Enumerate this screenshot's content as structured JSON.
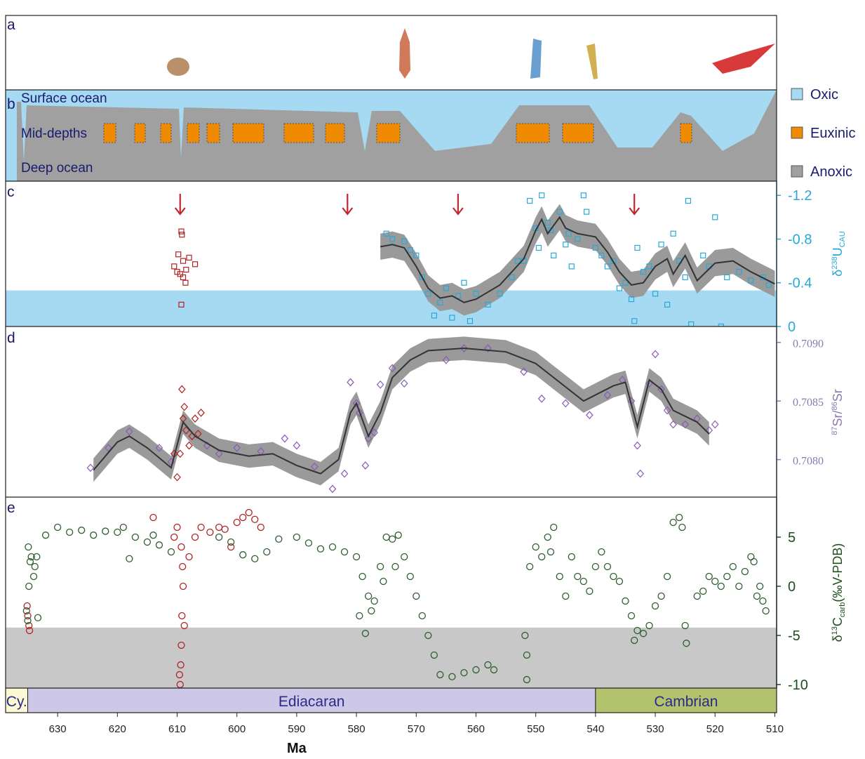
{
  "panel_a": {
    "label": "a"
  },
  "panel_b": {
    "label": "b",
    "zones": [
      "Surface ocean",
      "Mid-depths",
      "Deep ocean"
    ],
    "legend": [
      {
        "name": "Oxic",
        "color": "#a6d9f2"
      },
      {
        "name": "Euxinic",
        "color": "#f08a00"
      },
      {
        "name": "Anoxic",
        "color": "#a0a0a0"
      }
    ]
  },
  "chart_data": [
    {
      "type": "scatter",
      "panel_label": "c",
      "marker": "square",
      "ylim": [
        0,
        -1.33
      ],
      "yticks": [
        -1.2,
        -0.8,
        -0.4,
        0
      ],
      "axis_color": "#29a8d8",
      "y_label_parts": [
        "δ",
        "238",
        "U",
        "CAU"
      ],
      "shade": {
        "range": [
          0,
          -0.33
        ],
        "color": "#a6d9f2"
      },
      "arrows_x": [
        609.5,
        581.5,
        563,
        533.5
      ],
      "arrow_color": "#c0282d",
      "series": [
        {
          "color": "#b22222",
          "x": [
            609.3,
            609.2,
            609.8,
            610.5,
            609.0,
            608.0,
            607.0,
            608.5,
            609.5,
            610.0,
            609.0,
            608.6,
            609.3
          ],
          "values": [
            -0.87,
            -0.84,
            -0.66,
            -0.55,
            -0.6,
            -0.63,
            -0.57,
            -0.52,
            -0.48,
            -0.5,
            -0.45,
            -0.4,
            -0.2
          ]
        },
        {
          "color": "#29a8d8",
          "x": [
            575,
            574,
            572,
            571,
            570,
            569,
            568,
            567,
            566,
            565,
            564,
            563,
            562,
            561,
            560,
            558,
            556,
            554,
            552,
            551,
            550,
            549.5,
            549,
            548,
            547,
            546,
            545,
            544,
            543,
            542,
            541.5,
            540,
            539,
            538,
            537,
            536,
            535,
            534,
            533.5,
            533,
            532,
            531,
            530,
            529,
            528,
            527,
            526,
            525,
            524.5,
            524,
            522,
            521,
            520,
            519,
            518,
            516,
            514,
            512,
            511,
            553,
            547.5,
            544.5
          ],
          "values": [
            -0.85,
            -0.8,
            -0.78,
            -0.7,
            -0.65,
            -0.45,
            -0.3,
            -0.1,
            -0.22,
            -0.35,
            -0.08,
            -0.28,
            -0.4,
            -0.05,
            -0.3,
            -0.2,
            -0.3,
            -0.45,
            -0.6,
            -1.15,
            -0.9,
            -0.72,
            -1.2,
            -0.95,
            -0.65,
            -1.05,
            -0.75,
            -0.55,
            -0.8,
            -1.2,
            -1.05,
            -0.72,
            -0.65,
            -0.55,
            -0.6,
            -0.35,
            -0.4,
            -0.25,
            -0.05,
            -0.72,
            -0.5,
            -0.55,
            -0.3,
            -0.75,
            -0.2,
            -0.85,
            -0.6,
            -0.45,
            -1.15,
            -0.02,
            -0.65,
            -0.55,
            -1.0,
            0,
            -0.45,
            -0.5,
            -0.42,
            -0.45,
            -0.38,
            -0.6,
            -0.88,
            -0.85
          ]
        }
      ],
      "trend": {
        "color": "#333333",
        "band_color": "#9a9a9a",
        "x": [
          576,
          574,
          572,
          570,
          568,
          566,
          564,
          562,
          560,
          556,
          552,
          550,
          549,
          548,
          546,
          545,
          543,
          540,
          538,
          536,
          534,
          532,
          530,
          528,
          527,
          525,
          523,
          520,
          517,
          514,
          510
        ],
        "values": [
          -0.73,
          -0.75,
          -0.72,
          -0.55,
          -0.35,
          -0.26,
          -0.28,
          -0.22,
          -0.25,
          -0.38,
          -0.62,
          -0.88,
          -0.98,
          -0.85,
          -1.0,
          -0.9,
          -0.85,
          -0.82,
          -0.68,
          -0.5,
          -0.38,
          -0.4,
          -0.55,
          -0.62,
          -0.48,
          -0.65,
          -0.42,
          -0.58,
          -0.6,
          -0.5,
          -0.39
        ],
        "band_low": [
          -0.61,
          -0.63,
          -0.6,
          -0.43,
          -0.23,
          -0.14,
          -0.16,
          -0.1,
          -0.13,
          -0.26,
          -0.5,
          -0.76,
          -0.86,
          -0.73,
          -0.88,
          -0.78,
          -0.73,
          -0.7,
          -0.56,
          -0.38,
          -0.26,
          -0.28,
          -0.43,
          -0.5,
          -0.36,
          -0.53,
          -0.3,
          -0.46,
          -0.48,
          -0.38,
          -0.27
        ],
        "band_high": [
          -0.85,
          -0.87,
          -0.84,
          -0.67,
          -0.47,
          -0.38,
          -0.4,
          -0.34,
          -0.37,
          -0.5,
          -0.74,
          -1.0,
          -1.1,
          -0.97,
          -1.12,
          -1.02,
          -0.97,
          -0.94,
          -0.8,
          -0.62,
          -0.5,
          -0.52,
          -0.67,
          -0.74,
          -0.6,
          -0.77,
          -0.54,
          -0.7,
          -0.72,
          -0.62,
          -0.51
        ]
      }
    },
    {
      "type": "scatter",
      "panel_label": "d",
      "marker": "diamond",
      "ylim": [
        0.70768,
        0.70913
      ],
      "yticks": [
        {
          "value": 0.708,
          "label": "0.7080"
        },
        {
          "value": 0.7085,
          "label": "0.7085"
        },
        {
          "value": 0.709,
          "label": "0.7090"
        }
      ],
      "axis_color": "#8a7ab0",
      "y_label_parts": [
        "87",
        "Sr/",
        "86",
        "Sr"
      ],
      "series": [
        {
          "color": "#b22222",
          "x": [
            610,
            609.5,
            609,
            608.5,
            609.2,
            608.8,
            607.5,
            607,
            606.5,
            610.5,
            608,
            606
          ],
          "values": [
            0.70785,
            0.70805,
            0.70835,
            0.70825,
            0.7086,
            0.70845,
            0.7082,
            0.70835,
            0.70822,
            0.70805,
            0.70812,
            0.7084
          ]
        },
        {
          "color": "#8a5ab8",
          "x": [
            624.5,
            621.5,
            618,
            613,
            611,
            605,
            603,
            600,
            596,
            592,
            590,
            587,
            584,
            582,
            581,
            580,
            579.5,
            578.5,
            578,
            577,
            576,
            574,
            572,
            562,
            565,
            558,
            552,
            549,
            545,
            541,
            538,
            535.5,
            534,
            533,
            532.5,
            531,
            530,
            529,
            528,
            527,
            525,
            523,
            521,
            520
          ],
          "values": [
            0.70793,
            0.7081,
            0.70824,
            0.7081,
            0.70798,
            0.70812,
            0.70805,
            0.7081,
            0.70807,
            0.70818,
            0.70812,
            0.70794,
            0.70775,
            0.70788,
            0.70866,
            0.70848,
            0.7084,
            0.70795,
            0.70818,
            0.70823,
            0.70864,
            0.70878,
            0.70865,
            0.70895,
            0.70885,
            0.70895,
            0.70875,
            0.70852,
            0.70848,
            0.70838,
            0.70855,
            0.70868,
            0.7085,
            0.70812,
            0.70788,
            0.70865,
            0.7089,
            0.7086,
            0.70842,
            0.7083,
            0.7083,
            0.70835,
            0.70825,
            0.7083
          ]
        }
      ],
      "trend": {
        "color": "#333333",
        "band_color": "#9a9a9a",
        "x": [
          624,
          620,
          618,
          615,
          611,
          609,
          607,
          603,
          598,
          594,
          590,
          586,
          583,
          581,
          580,
          578,
          576,
          574,
          571,
          568,
          562,
          555,
          550,
          547,
          542,
          537,
          535,
          533,
          531,
          529,
          527,
          523,
          521
        ],
        "values": [
          0.70791,
          0.70815,
          0.7082,
          0.7081,
          0.70793,
          0.70832,
          0.7082,
          0.70808,
          0.70803,
          0.70805,
          0.70795,
          0.70788,
          0.708,
          0.7084,
          0.70848,
          0.7082,
          0.7084,
          0.7087,
          0.70885,
          0.70893,
          0.70895,
          0.70892,
          0.70882,
          0.7087,
          0.7085,
          0.70863,
          0.70866,
          0.70828,
          0.70868,
          0.7086,
          0.70842,
          0.70832,
          0.70822
        ],
        "band_low": [
          0.70781,
          0.70805,
          0.7081,
          0.708,
          0.70783,
          0.70822,
          0.7081,
          0.70798,
          0.70793,
          0.70795,
          0.70785,
          0.70778,
          0.7079,
          0.7083,
          0.70838,
          0.7081,
          0.7083,
          0.7086,
          0.70875,
          0.70883,
          0.70885,
          0.70882,
          0.70872,
          0.7086,
          0.7084,
          0.70853,
          0.70856,
          0.70818,
          0.70858,
          0.7085,
          0.70832,
          0.70822,
          0.70812
        ],
        "band_high": [
          0.70801,
          0.70825,
          0.7083,
          0.7082,
          0.70803,
          0.70842,
          0.7083,
          0.70818,
          0.70813,
          0.70815,
          0.70805,
          0.70798,
          0.7081,
          0.7085,
          0.70858,
          0.7083,
          0.7085,
          0.7088,
          0.70895,
          0.70903,
          0.70905,
          0.70902,
          0.70892,
          0.7088,
          0.7086,
          0.70873,
          0.70876,
          0.70838,
          0.70878,
          0.7087,
          0.70852,
          0.70842,
          0.70832
        ]
      }
    },
    {
      "type": "scatter",
      "panel_label": "e",
      "marker": "circle",
      "ylim": [
        -10.36,
        9.07
      ],
      "yticks": [
        -10,
        -5,
        0,
        5
      ],
      "axis_color": "#1e4d1e",
      "y_label_parts": [
        "δ",
        "13",
        "C",
        "carb",
        "(‰V-PDB)"
      ],
      "shade": {
        "range": [
          -10.36,
          -4.2
        ],
        "color": "#c8c8c8"
      },
      "series": [
        {
          "color": "#b22222",
          "x": [
            635,
            634.8,
            635.1,
            634.7,
            609.5,
            609.4,
            609.3,
            609.2,
            609,
            609.1,
            609.3,
            610,
            610.5,
            608,
            607,
            606,
            604.5,
            603,
            602,
            600,
            599,
            598,
            597,
            596,
            601,
            614,
            609.6,
            608.8
          ],
          "values": [
            -3,
            -4,
            -2,
            -4.5,
            -10,
            -8,
            -6,
            -3,
            0,
            2,
            4,
            6,
            5,
            3,
            5,
            6,
            5.5,
            6,
            5.8,
            6.5,
            7,
            7.5,
            6.8,
            6,
            4,
            7,
            -9,
            -4
          ]
        },
        {
          "color": "#2e5e2e",
          "x": [
            635,
            635.2,
            634.8,
            634.6,
            634.4,
            633.8,
            633.5,
            634,
            633.3,
            634.9,
            632,
            630,
            628,
            626,
            624,
            622,
            620,
            619,
            617,
            615,
            613,
            611,
            614,
            618,
            603,
            601,
            599,
            597,
            595,
            593,
            590,
            588,
            586,
            584,
            582,
            580,
            579,
            578,
            579.5,
            578.5,
            577,
            576,
            575,
            574,
            573,
            572,
            571,
            570,
            569,
            568,
            567,
            566,
            564,
            562,
            560,
            558,
            557,
            575.5,
            573.5,
            577.5,
            551.5,
            551.5,
            551.8,
            551,
            550,
            549,
            548,
            547,
            547.5,
            546,
            545,
            544,
            543,
            542,
            541,
            540,
            539,
            538,
            537,
            536,
            535,
            534,
            533.5,
            533,
            532,
            531,
            530,
            529,
            528,
            527,
            526,
            525.5,
            525,
            524.8,
            523,
            522,
            521,
            520,
            519,
            518,
            517,
            516,
            515,
            514,
            513,
            512,
            511.5,
            512.5,
            513.5
          ],
          "values": [
            -3.5,
            -2.5,
            0,
            2.5,
            3,
            2,
            3,
            1,
            -3.2,
            4,
            5.2,
            6,
            5.5,
            5.7,
            5.2,
            5.6,
            5.5,
            6,
            5,
            4.5,
            4.2,
            3.5,
            5.2,
            2.8,
            5,
            4.5,
            3.2,
            2.8,
            3.5,
            4.8,
            5,
            4.4,
            3.8,
            4,
            3.5,
            3,
            1,
            -1,
            -3,
            -4.8,
            -1.5,
            2,
            5,
            4.8,
            5.2,
            3,
            1,
            -1,
            -3,
            -5,
            -7,
            -9,
            -9.2,
            -8.8,
            -8.5,
            -8,
            -8.5,
            0.5,
            2,
            -2.5,
            -9.5,
            -7,
            -5,
            2,
            4,
            3,
            5,
            6,
            3.5,
            1,
            -1,
            3,
            1,
            0.5,
            -0.5,
            2,
            3.5,
            2,
            1,
            0.5,
            -1.5,
            -3,
            -5.5,
            -4.5,
            -4.8,
            -4,
            -2,
            -1,
            1,
            6.5,
            7,
            6,
            -4,
            -5.8,
            -1,
            -0.5,
            1,
            0.5,
            0,
            1,
            2,
            0,
            1.5,
            3,
            -1,
            -1.5,
            -2.5,
            0,
            2.5
          ]
        }
      ],
      "xlim": [
        638.7,
        509.7
      ],
      "xticks": [
        630,
        620,
        610,
        600,
        590,
        580,
        570,
        560,
        550,
        540,
        530,
        520,
        510
      ],
      "x_label": "Ma",
      "periods": [
        {
          "name": "Cy.",
          "start": 638.7,
          "end": 635,
          "color": "#fdf8d4"
        },
        {
          "name": "Ediacaran",
          "start": 635,
          "end": 540,
          "color": "#cdc8e8"
        },
        {
          "name": "Cambrian",
          "start": 540,
          "end": 509.7,
          "color": "#b3c26c"
        }
      ]
    }
  ]
}
